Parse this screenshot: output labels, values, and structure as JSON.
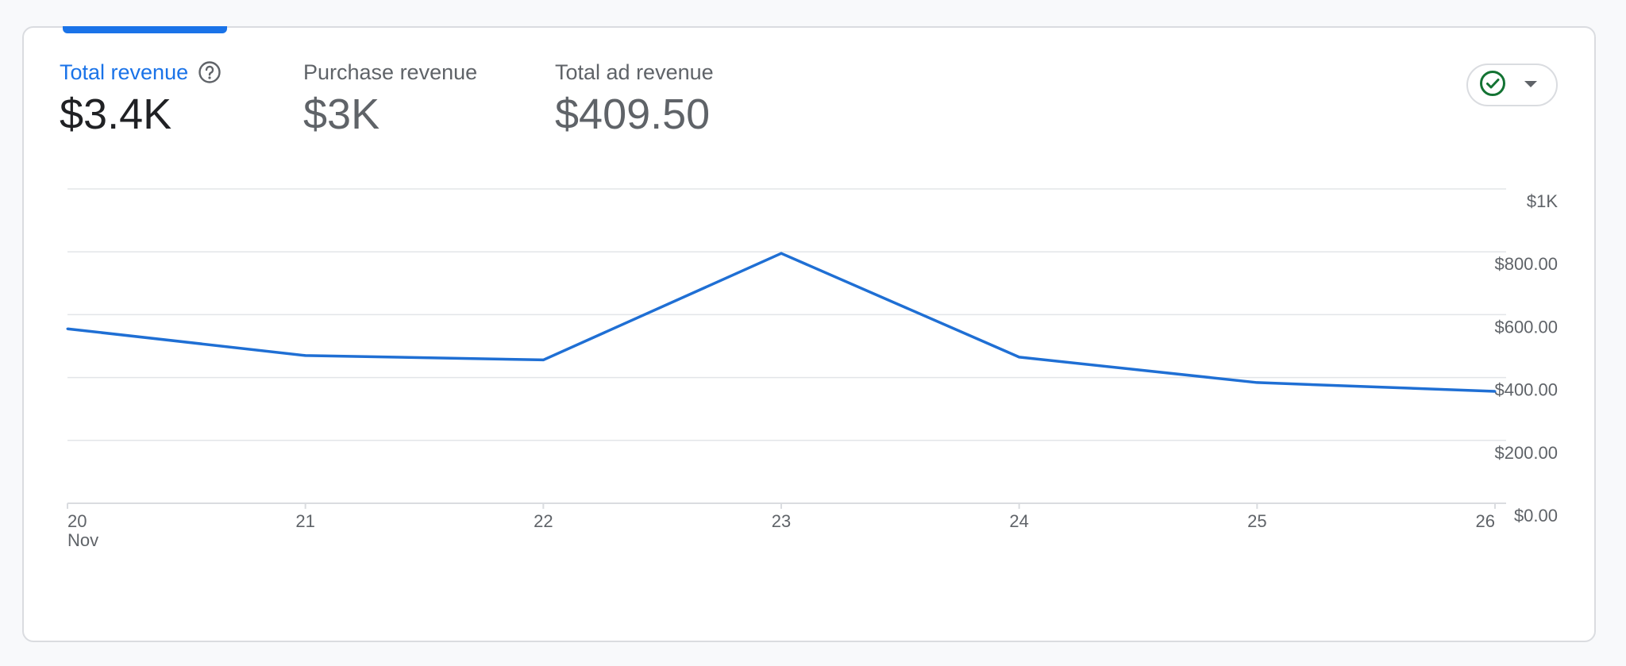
{
  "metrics": [
    {
      "label": "Total revenue",
      "value": "$3.4K",
      "active": true
    },
    {
      "label": "Purchase revenue",
      "value": "$3K",
      "active": false
    },
    {
      "label": "Total ad revenue",
      "value": "$409.50",
      "active": false
    }
  ],
  "icons": {
    "help": "help-circle-icon",
    "status": "check-circle-icon",
    "dropdown": "dropdown-arrow-icon"
  },
  "colors": {
    "accent": "#1a73e8",
    "series": "#1f6fd4",
    "status_green": "#137333"
  },
  "chart_data": {
    "type": "line",
    "title": "",
    "xlabel": "",
    "ylabel": "",
    "x": [
      "20",
      "21",
      "22",
      "23",
      "24",
      "25",
      "26"
    ],
    "x_sublabel": "Nov",
    "series": [
      {
        "values": [
          555,
          470,
          456,
          795,
          465,
          384,
          356
        ]
      }
    ],
    "ylim": [
      0,
      1000
    ],
    "y_ticks": [
      {
        "value": 1000,
        "label": "$1K"
      },
      {
        "value": 800,
        "label": "$800.00"
      },
      {
        "value": 600,
        "label": "$600.00"
      },
      {
        "value": 400,
        "label": "$400.00"
      },
      {
        "value": 200,
        "label": "$200.00"
      },
      {
        "value": 0,
        "label": "$0.00"
      }
    ],
    "y_axis_side": "right",
    "grid": true,
    "legend": "none"
  }
}
